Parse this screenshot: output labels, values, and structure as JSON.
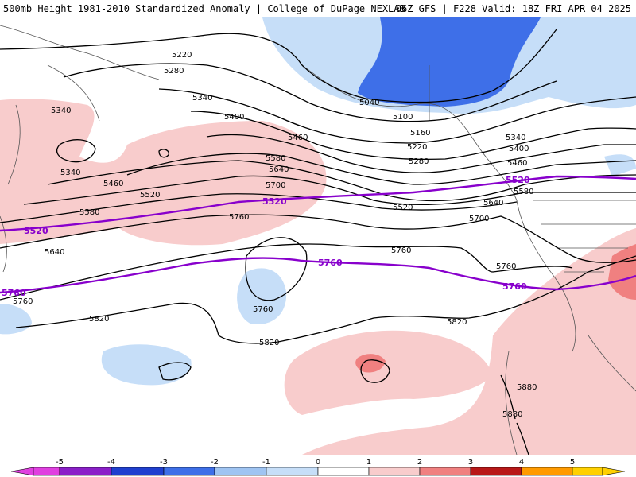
{
  "header": {
    "left": "500mb Height 1981-2010 Standardized Anomaly | College of DuPage NEXLAB",
    "right": "06Z GFS | F228 Valid: 18Z FRI APR 04 2025"
  },
  "colors": {
    "neg5": "#e040e0",
    "neg4": "#8a1fc8",
    "neg3": "#1f3fcf",
    "neg2": "#3e6fe8",
    "neg1": "#c6def8",
    "zero": "#ffffff",
    "pos1": "#f8cccc",
    "pos2": "#f08080",
    "pos3": "#b81818",
    "pos4": "#ff9a00",
    "pos5": "#ffd000",
    "contour": "#000000",
    "climo": "#8800cc",
    "coast": "#555555"
  },
  "contour_labels": [
    "5040",
    "5100",
    "5160",
    "5220",
    "5280",
    "5340",
    "5400",
    "5460",
    "5520",
    "5580",
    "5640",
    "5700",
    "5760",
    "5820",
    "5880"
  ],
  "climo_labels": [
    "5520",
    "5760"
  ],
  "colorbar": {
    "ticks": [
      "-5",
      "-4",
      "-3",
      "-2",
      "-1",
      "0",
      "1",
      "2",
      "3",
      "4",
      "5"
    ]
  }
}
